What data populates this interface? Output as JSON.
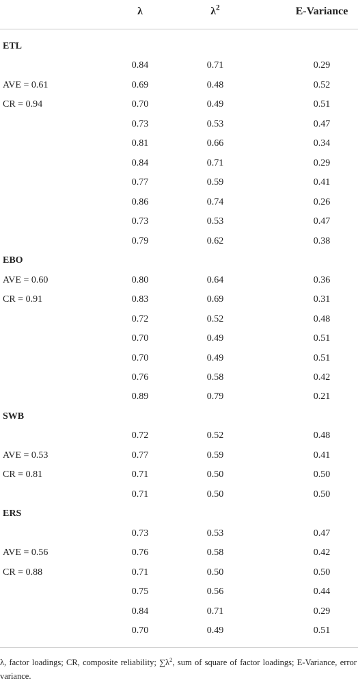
{
  "table": {
    "header": {
      "col1": "λ",
      "col2_base": "λ",
      "col2_sup": "2",
      "col3": "E-Variance"
    },
    "rows": [
      {
        "group": "ETL"
      },
      {
        "cells": [
          "0.84",
          "0.71",
          "0.29"
        ]
      },
      {
        "label": "AVE = 0.61",
        "cells": [
          "0.69",
          "0.48",
          "0.52"
        ]
      },
      {
        "label": "CR = 0.94",
        "cells": [
          "0.70",
          "0.49",
          "0.51"
        ]
      },
      {
        "cells": [
          "0.73",
          "0.53",
          "0.47"
        ]
      },
      {
        "cells": [
          "0.81",
          "0.66",
          "0.34"
        ]
      },
      {
        "cells": [
          "0.84",
          "0.71",
          "0.29"
        ]
      },
      {
        "cells": [
          "0.77",
          "0.59",
          "0.41"
        ]
      },
      {
        "cells": [
          "0.86",
          "0.74",
          "0.26"
        ]
      },
      {
        "cells": [
          "0.73",
          "0.53",
          "0.47"
        ]
      },
      {
        "cells": [
          "0.79",
          "0.62",
          "0.38"
        ]
      },
      {
        "group": "EBO"
      },
      {
        "label": "AVE = 0.60",
        "cells": [
          "0.80",
          "0.64",
          "0.36"
        ]
      },
      {
        "label": "CR = 0.91",
        "cells": [
          "0.83",
          "0.69",
          "0.31"
        ]
      },
      {
        "cells": [
          "0.72",
          "0.52",
          "0.48"
        ]
      },
      {
        "cells": [
          "0.70",
          "0.49",
          "0.51"
        ]
      },
      {
        "cells": [
          "0.70",
          "0.49",
          "0.51"
        ]
      },
      {
        "cells": [
          "0.76",
          "0.58",
          "0.42"
        ]
      },
      {
        "cells": [
          "0.89",
          "0.79",
          "0.21"
        ]
      },
      {
        "group": "SWB"
      },
      {
        "cells": [
          "0.72",
          "0.52",
          "0.48"
        ]
      },
      {
        "label": "AVE = 0.53",
        "cells": [
          "0.77",
          "0.59",
          "0.41"
        ]
      },
      {
        "label": "CR = 0.81",
        "cells": [
          "0.71",
          "0.50",
          "0.50"
        ]
      },
      {
        "cells": [
          "0.71",
          "0.50",
          "0.50"
        ]
      },
      {
        "group": "ERS"
      },
      {
        "cells": [
          "0.73",
          "0.53",
          "0.47"
        ]
      },
      {
        "label": "AVE = 0.56",
        "cells": [
          "0.76",
          "0.58",
          "0.42"
        ]
      },
      {
        "label": "CR = 0.88",
        "cells": [
          "0.71",
          "0.50",
          "0.50"
        ]
      },
      {
        "cells": [
          "0.75",
          "0.56",
          "0.44"
        ]
      },
      {
        "cells": [
          "0.84",
          "0.71",
          "0.29"
        ]
      },
      {
        "cells": [
          "0.70",
          "0.49",
          "0.51"
        ]
      }
    ]
  },
  "footnote": {
    "before": "λ, factor loadings; CR, composite reliability; ∑λ",
    "sup": "2",
    "after": ", sum of square of factor loadings; E-Variance, error variance."
  }
}
